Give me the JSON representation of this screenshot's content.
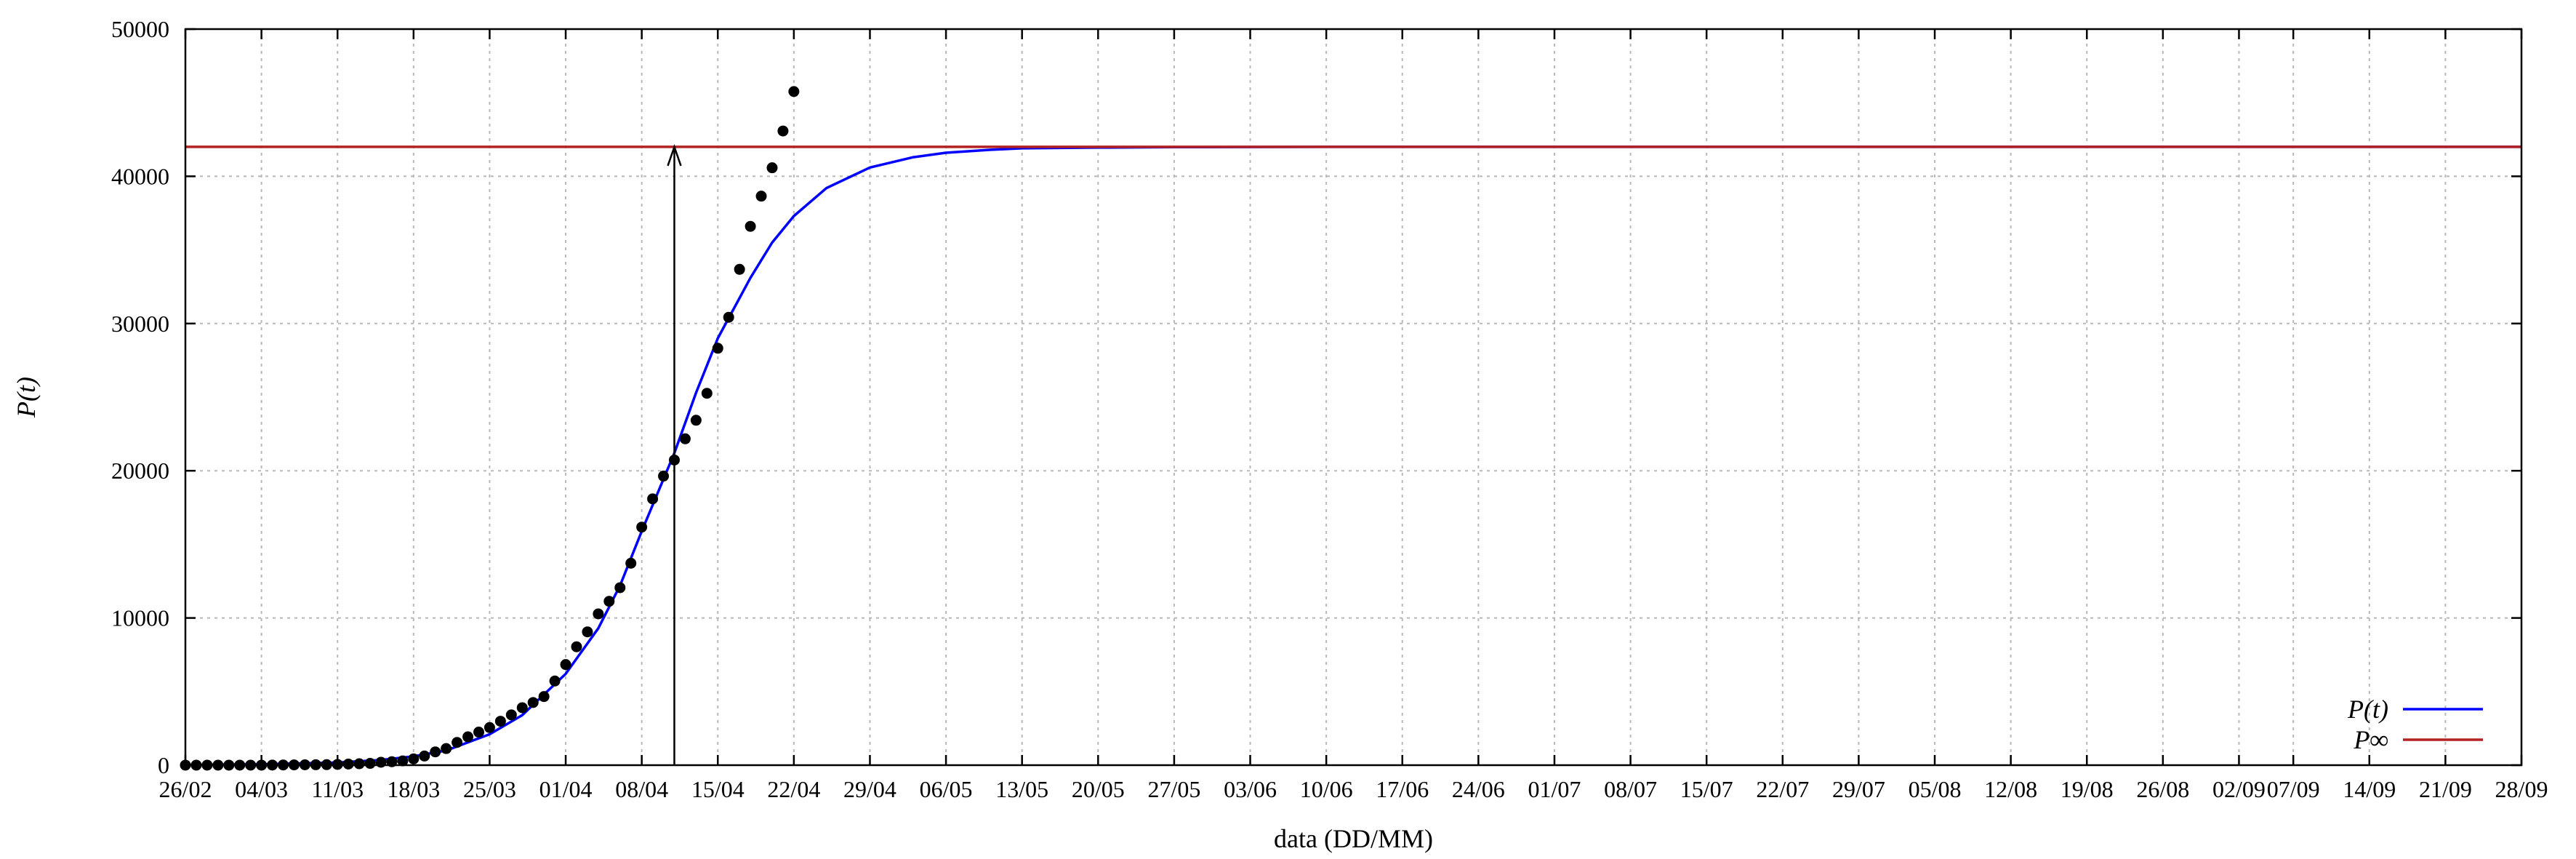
{
  "chart_data": {
    "type": "line",
    "xlabel": "data (DD/MM)",
    "ylabel": "P(t)",
    "ylim": [
      0,
      50000
    ],
    "yticks": [
      0,
      10000,
      20000,
      30000,
      40000,
      50000
    ],
    "xlim": [
      "2020-02-26",
      "2020-09-28"
    ],
    "xtick_labels": [
      "26/02",
      "04/03",
      "11/03",
      "18/03",
      "25/03",
      "01/04",
      "08/04",
      "15/04",
      "22/04",
      "29/04",
      "06/05",
      "13/05",
      "20/05",
      "27/05",
      "03/06",
      "10/06",
      "17/06",
      "24/06",
      "01/07",
      "08/07",
      "15/07",
      "22/07",
      "29/07",
      "05/08",
      "12/08",
      "19/08",
      "26/08",
      "02/09",
      "07/09",
      "14/09",
      "21/09",
      "28/09"
    ],
    "xtick_dates": [
      "2020-02-26",
      "2020-03-04",
      "2020-03-11",
      "2020-03-18",
      "2020-03-25",
      "2020-04-01",
      "2020-04-08",
      "2020-04-15",
      "2020-04-22",
      "2020-04-29",
      "2020-05-06",
      "2020-05-13",
      "2020-05-20",
      "2020-05-27",
      "2020-06-03",
      "2020-06-10",
      "2020-06-17",
      "2020-06-24",
      "2020-07-01",
      "2020-07-08",
      "2020-07-15",
      "2020-07-22",
      "2020-07-29",
      "2020-08-05",
      "2020-08-12",
      "2020-08-19",
      "2020-08-26",
      "2020-09-02",
      "2020-09-07",
      "2020-09-14",
      "2020-09-21",
      "2020-09-28"
    ],
    "grid": true,
    "legend_position": "bottom-right",
    "series": [
      {
        "name": "P(t)",
        "kind": "line",
        "color": "#0000ff",
        "x": [
          "2020-02-26",
          "2020-03-04",
          "2020-03-11",
          "2020-03-15",
          "2020-03-18",
          "2020-03-21",
          "2020-03-25",
          "2020-03-28",
          "2020-04-01",
          "2020-04-04",
          "2020-04-06",
          "2020-04-08",
          "2020-04-11",
          "2020-04-13",
          "2020-04-15",
          "2020-04-18",
          "2020-04-20",
          "2020-04-22",
          "2020-04-25",
          "2020-04-29",
          "2020-05-03",
          "2020-05-06",
          "2020-05-10",
          "2020-05-13",
          "2020-05-20",
          "2020-05-27",
          "2020-06-10",
          "2020-07-01",
          "2020-08-01",
          "2020-09-01",
          "2020-09-28"
        ],
        "y": [
          20,
          60,
          180,
          350,
          600,
          1000,
          2100,
          3400,
          6200,
          9300,
          12200,
          15900,
          21200,
          25300,
          29000,
          33100,
          35500,
          37300,
          39200,
          40600,
          41300,
          41600,
          41800,
          41900,
          41950,
          41980,
          42000,
          42000,
          42000,
          42000,
          42000
        ]
      },
      {
        "name": "P∞",
        "kind": "hline",
        "color": "#b22222",
        "value": 42000
      },
      {
        "name": "",
        "kind": "scatter",
        "color": "#000000",
        "x": [
          "2020-02-26",
          "2020-02-27",
          "2020-02-28",
          "2020-02-29",
          "2020-03-01",
          "2020-03-02",
          "2020-03-03",
          "2020-03-04",
          "2020-03-05",
          "2020-03-06",
          "2020-03-07",
          "2020-03-08",
          "2020-03-09",
          "2020-03-10",
          "2020-03-11",
          "2020-03-12",
          "2020-03-13",
          "2020-03-14",
          "2020-03-15",
          "2020-03-16",
          "2020-03-17",
          "2020-03-18",
          "2020-03-19",
          "2020-03-20",
          "2020-03-21",
          "2020-03-22",
          "2020-03-23",
          "2020-03-24",
          "2020-03-25",
          "2020-03-26",
          "2020-03-27",
          "2020-03-28",
          "2020-03-29",
          "2020-03-30",
          "2020-03-31",
          "2020-04-01",
          "2020-04-02",
          "2020-04-03",
          "2020-04-04",
          "2020-04-05",
          "2020-04-06",
          "2020-04-07",
          "2020-04-08",
          "2020-04-09",
          "2020-04-10",
          "2020-04-11",
          "2020-04-12",
          "2020-04-13",
          "2020-04-14",
          "2020-04-15",
          "2020-04-16",
          "2020-04-17",
          "2020-04-18",
          "2020-04-19",
          "2020-04-20",
          "2020-04-21",
          "2020-04-22"
        ],
        "y": [
          1,
          1,
          1,
          2,
          2,
          2,
          3,
          3,
          8,
          13,
          19,
          25,
          30,
          34,
          52,
          77,
          98,
          121,
          200,
          234,
          291,
          428,
          621,
          904,
          1128,
          1546,
          1924,
          2247,
          2554,
          2985,
          3417,
          3904,
          4256,
          4661,
          5717,
          6836,
          8044,
          9056,
          10278,
          11130,
          12056,
          13717,
          16170,
          18092,
          19638,
          20727,
          22169,
          23430,
          25262,
          28320,
          30425,
          33682,
          36599,
          38654,
          40581,
          43079,
          45757
        ]
      }
    ],
    "annotations": [
      {
        "type": "arrow",
        "x": "2020-04-11",
        "y_from": 0,
        "y_to": 42000
      }
    ]
  }
}
